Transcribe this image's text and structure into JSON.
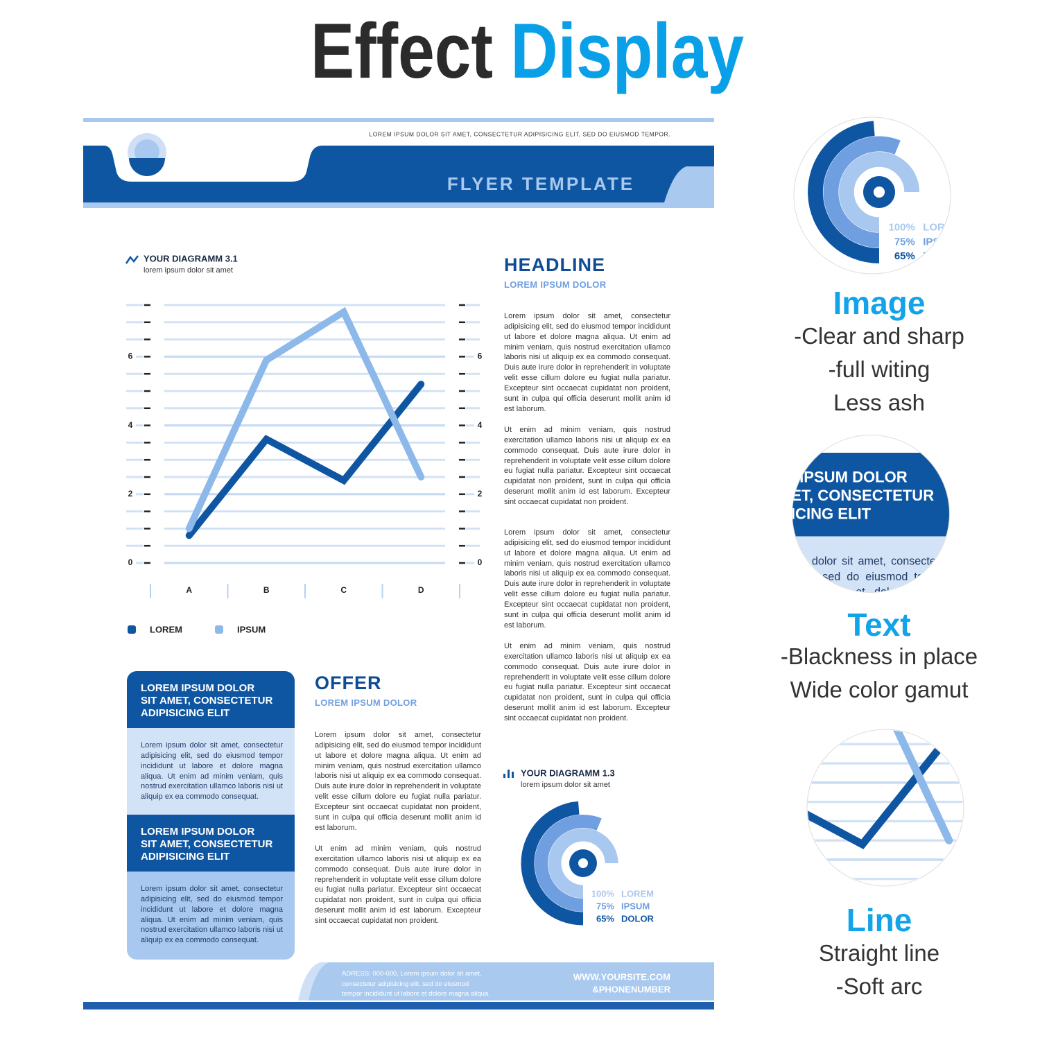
{
  "header": {
    "title_dark": "Effect",
    "title_accent": "Display"
  },
  "flyer": {
    "top_note": "LOREM IPSUM DOLOR SIT AMET, CONSECTETUR ADIPISICING ELIT, SED DO EIUSMOD TEMPOR.",
    "banner": "FLYER TEMPLATE",
    "diagram1": {
      "title": "YOUR DIAGRAMM 3.1",
      "subtitle": "lorem ipsum dolor sit amet",
      "chart": {
        "type": "line",
        "categories": [
          "A",
          "B",
          "C",
          "D"
        ],
        "series": [
          {
            "name": "LOREM",
            "color": "#0f56a2",
            "values": [
              0.8,
              3.6,
              2.4,
              5.2
            ]
          },
          {
            "name": "IPSUM",
            "color": "#8db8ea",
            "values": [
              1.0,
              5.9,
              7.3,
              2.5
            ]
          }
        ],
        "ylim": [
          0,
          7.5
        ],
        "yticks": [
          0,
          2,
          4,
          6
        ],
        "grid": true
      }
    },
    "headline": {
      "title": "HEADLINE",
      "subtitle": "LOREM IPSUM DOLOR",
      "paragraphs": [
        "Lorem ipsum dolor sit amet, consectetur adipisicing elit, sed do eiusmod tempor incididunt ut labore et dolore magna aliqua. Ut enim ad minim veniam, quis nostrud exercitation ullamco laboris nisi ut aliquip ex ea commodo consequat. Duis aute irure dolor in reprehenderit in voluptate velit esse cillum dolore eu fugiat nulla pariatur. Excepteur sint occaecat cupidatat non proident, sunt in culpa qui officia deserunt mollit anim id est laborum.",
        "Ut enim ad minim veniam, quis nostrud exercitation ullamco laboris nisi ut aliquip ex ea commodo consequat. Duis aute irure dolor in reprehenderit in voluptate velit esse cillum dolore eu fugiat nulla pariatur. Excepteur sint occaecat cupidatat non proident, sunt in culpa qui officia deserunt mollit anim id est laborum. Excepteur sint occaecat cupidatat non proident.",
        "Lorem ipsum dolor sit amet, consectetur adipisicing elit, sed do eiusmod tempor incididunt ut labore et dolore magna aliqua. Ut enim ad minim veniam, quis nostrud exercitation ullamco laboris nisi ut aliquip ex ea commodo consequat. Duis aute irure dolor in reprehenderit in voluptate velit esse cillum dolore eu fugiat nulla pariatur. Excepteur sint occaecat cupidatat non proident, sunt in culpa qui officia deserunt mollit anim id est laborum.",
        "Ut enim ad minim veniam, quis nostrud exercitation ullamco laboris nisi ut aliquip ex ea commodo consequat. Duis aute irure dolor in reprehenderit in voluptate velit esse cillum dolore eu fugiat nulla pariatur. Excepteur sint occaecat cupidatat non proident, sunt in culpa qui officia deserunt mollit anim id est laborum. Excepteur sint occaecat cupidatat non proident."
      ]
    },
    "boxes": [
      {
        "title_lines": [
          "LOREM IPSUM DOLOR",
          "SIT AMET, CONSECTETUR",
          "ADIPISICING ELIT"
        ],
        "body": "Lorem ipsum dolor sit amet, consectetur adipisicing elit, sed do eiusmod tempor incididunt ut labore et dolore magna aliqua. Ut enim ad minim veniam, quis nostrud exercitation ullamco laboris nisi ut aliquip ex ea commodo consequat."
      },
      {
        "title_lines": [
          "LOREM IPSUM DOLOR",
          "SIT AMET, CONSECTETUR",
          "ADIPISICING ELIT"
        ],
        "body": "Lorem ipsum dolor sit amet, consectetur adipisicing elit, sed do eiusmod tempor incididunt ut labore et dolore magna aliqua. Ut enim ad minim veniam, quis nostrud exercitation ullamco laboris nisi ut aliquip ex ea commodo consequat."
      }
    ],
    "offer": {
      "title": "OFFER",
      "subtitle": "LOREM IPSUM DOLOR",
      "paragraphs": [
        "Lorem ipsum dolor sit amet, consectetur adipisicing elit, sed do eiusmod tempor incididunt ut labore et dolore magna aliqua. Ut enim ad minim veniam, quis nostrud exercitation ullamco laboris nisi ut aliquip ex ea commodo consequat. Duis aute irure dolor in reprehenderit in voluptate velit esse cillum dolore eu fugiat nulla pariatur. Excepteur sint occaecat cupidatat non proident, sunt in culpa qui officia deserunt mollit anim id est laborum.",
        "Ut enim ad minim veniam, quis nostrud exercitation ullamco laboris nisi ut aliquip ex ea commodo consequat. Duis aute irure dolor in reprehenderit in voluptate velit esse cillum dolore eu fugiat nulla pariatur. Excepteur sint occaecat cupidatat non proident, sunt in culpa qui officia deserunt mollit anim id est laborum. Excepteur sint occaecat cupidatat non proident."
      ]
    },
    "diagram2": {
      "title": "YOUR DIAGRAMM 1.3",
      "subtitle": "lorem ipsum dolor sit amet",
      "chart": {
        "type": "radial",
        "categories": [
          "LOREM",
          "IPSUM",
          "DOLOR"
        ],
        "values": [
          100,
          75,
          65
        ],
        "value_labels": [
          "100%",
          "75%",
          "65%"
        ],
        "colors": [
          "#a9c8ef",
          "#6f9fe0",
          "#0f56a2"
        ]
      }
    },
    "footer": {
      "address": "ADRESS: 000-000, Lorem ipsum dolor sit amet, consectetur adipisicing elit, sed do eiusmod tempor incididunt ut labore et dolore magna aliqua.",
      "website": "WWW.YOURSITE.COM",
      "phone": "&PHONENUMBER"
    }
  },
  "features": [
    {
      "title": "Image",
      "lines": [
        "-Clear and sharp",
        "-full witing",
        "Less ash"
      ]
    },
    {
      "title": "Text",
      "lines": [
        "-Blackness in place",
        "Wide color gamut"
      ]
    },
    {
      "title": "Line",
      "lines": [
        "Straight line",
        "-Soft arc"
      ]
    }
  ]
}
